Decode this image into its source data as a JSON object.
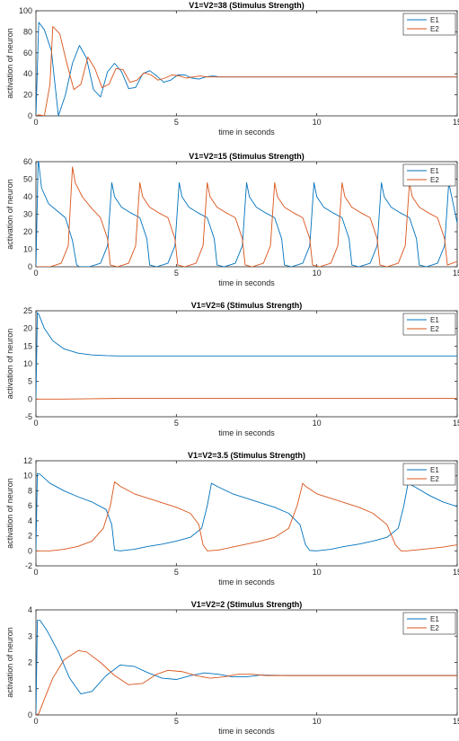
{
  "chart_data": [
    {
      "type": "line",
      "title": "V1=V2=38 (Stimulus Strength)",
      "xlabel": "time in seconds",
      "ylabel": "activation of neuron",
      "xlim": [
        0,
        15
      ],
      "ylim": [
        0,
        100
      ],
      "xticks": [
        "0",
        "5",
        "10",
        "15"
      ],
      "yticks": [
        "0",
        "20",
        "40",
        "60",
        "80",
        "100"
      ],
      "legend_position": "top-right",
      "series": [
        {
          "name": "E1",
          "color": "#0072BD",
          "x": [
            0,
            0.1,
            0.3,
            0.55,
            0.8,
            1.05,
            1.3,
            1.55,
            1.8,
            2.05,
            2.3,
            2.55,
            2.8,
            3.05,
            3.3,
            3.55,
            3.8,
            4.05,
            4.3,
            4.55,
            4.8,
            5.05,
            5.3,
            5.55,
            5.8,
            6.05,
            6.3,
            6.55,
            6.8,
            7,
            8,
            10,
            15
          ],
          "y": [
            0,
            89,
            82,
            62,
            0,
            20,
            50,
            67,
            55,
            25,
            18,
            42,
            50,
            42,
            26,
            27,
            40,
            43,
            38,
            32,
            34,
            39,
            39,
            36,
            35,
            37,
            38,
            37,
            37,
            37,
            37,
            37,
            37
          ]
        },
        {
          "name": "E2",
          "color": "#D95319",
          "x": [
            0,
            0.1,
            0.3,
            0.5,
            0.6,
            0.85,
            1.1,
            1.35,
            1.6,
            1.85,
            2.1,
            2.35,
            2.6,
            2.85,
            3.1,
            3.35,
            3.6,
            3.85,
            4.1,
            4.35,
            4.6,
            4.85,
            5.1,
            5.35,
            5.6,
            5.85,
            6.1,
            6.35,
            6.6,
            7,
            8,
            10,
            15
          ],
          "y": [
            0,
            1,
            0,
            30,
            85,
            78,
            50,
            25,
            30,
            56,
            45,
            27,
            30,
            45,
            44,
            32,
            34,
            41,
            39,
            34,
            36,
            39,
            38,
            36,
            37,
            38,
            37,
            37,
            37,
            37,
            37,
            37,
            37
          ]
        }
      ]
    },
    {
      "type": "line",
      "title": "V1=V2=15 (Stimulus Strength)",
      "xlabel": "time in seconds",
      "ylabel": "activation of neuron",
      "xlim": [
        0,
        15
      ],
      "ylim": [
        0,
        60
      ],
      "xticks": [
        "0",
        "5",
        "10",
        "15"
      ],
      "yticks": [
        "0",
        "10",
        "20",
        "30",
        "40",
        "50",
        "60"
      ],
      "legend_position": "top-right",
      "series": [
        {
          "name": "E1",
          "color": "#0072BD",
          "x": [
            0,
            0.08,
            0.2,
            0.45,
            0.75,
            1.05,
            1.3,
            1.45,
            1.55,
            1.9,
            2.3,
            2.55,
            2.7,
            2.8,
            3.05,
            3.35,
            3.7,
            3.95,
            4.05,
            4.3,
            4.7,
            4.95,
            5.1,
            5.2,
            5.45,
            5.75,
            6.1,
            6.35,
            6.45,
            6.7,
            7.1,
            7.35,
            7.5,
            7.6,
            7.85,
            8.15,
            8.5,
            8.75,
            8.85,
            9.1,
            9.5,
            9.75,
            9.9,
            10.0,
            10.25,
            10.55,
            10.9,
            11.15,
            11.25,
            11.5,
            11.9,
            12.15,
            12.3,
            12.4,
            12.65,
            12.95,
            13.3,
            13.55,
            13.65,
            13.9,
            14.3,
            14.55,
            14.7,
            15
          ],
          "y": [
            0,
            62,
            45,
            36,
            32,
            28,
            15,
            1,
            0,
            0,
            2,
            12,
            48,
            40,
            34,
            31,
            28,
            16,
            1,
            0,
            2,
            12,
            48,
            40,
            34,
            31,
            28,
            16,
            1,
            0,
            2,
            12,
            48,
            40,
            34,
            31,
            28,
            16,
            1,
            0,
            2,
            12,
            48,
            40,
            34,
            31,
            28,
            16,
            1,
            0,
            2,
            12,
            48,
            40,
            34,
            31,
            28,
            16,
            1,
            0,
            2,
            12,
            48,
            25
          ]
        },
        {
          "name": "E2",
          "color": "#D95319",
          "x": [
            0,
            0.5,
            0.9,
            1.15,
            1.3,
            1.4,
            1.65,
            1.95,
            2.3,
            2.55,
            2.65,
            2.9,
            3.3,
            3.55,
            3.7,
            3.8,
            4.05,
            4.35,
            4.7,
            4.95,
            5.05,
            5.3,
            5.7,
            5.95,
            6.1,
            6.2,
            6.45,
            6.75,
            7.1,
            7.35,
            7.45,
            7.7,
            8.1,
            8.35,
            8.5,
            8.6,
            8.85,
            9.15,
            9.5,
            9.75,
            9.85,
            10.1,
            10.5,
            10.75,
            10.9,
            11.0,
            11.25,
            11.55,
            11.9,
            12.15,
            12.25,
            12.5,
            12.9,
            13.15,
            13.3,
            13.4,
            13.65,
            13.95,
            14.3,
            14.55,
            14.65,
            15
          ],
          "y": [
            0,
            0,
            2,
            12,
            57,
            48,
            40,
            34,
            28,
            16,
            1,
            0,
            2,
            12,
            48,
            40,
            34,
            31,
            28,
            16,
            1,
            0,
            2,
            12,
            48,
            40,
            34,
            31,
            28,
            16,
            1,
            0,
            2,
            12,
            48,
            40,
            34,
            31,
            28,
            16,
            1,
            0,
            2,
            12,
            48,
            40,
            34,
            31,
            28,
            16,
            1,
            0,
            2,
            12,
            48,
            40,
            34,
            31,
            28,
            16,
            1,
            3
          ]
        }
      ]
    },
    {
      "type": "line",
      "title": "V1=V2=6 (Stimulus Strength)",
      "xlabel": "time in seconds",
      "ylabel": "activation of neuron",
      "xlim": [
        0,
        15
      ],
      "ylim": [
        -5,
        25
      ],
      "xticks": [
        "0",
        "5",
        "10",
        "15"
      ],
      "yticks": [
        "-5",
        "0",
        "5",
        "10",
        "15",
        "20",
        "25"
      ],
      "legend_position": "top-right",
      "series": [
        {
          "name": "E1",
          "color": "#0072BD",
          "x": [
            0,
            0.05,
            0.1,
            0.3,
            0.6,
            1.0,
            1.5,
            2.0,
            2.5,
            3.0,
            5,
            10,
            15
          ],
          "y": [
            0,
            24.5,
            24,
            20,
            16.5,
            14.2,
            13,
            12.5,
            12.3,
            12.2,
            12.2,
            12.2,
            12.2
          ]
        },
        {
          "name": "E2",
          "color": "#D95319",
          "x": [
            0,
            1,
            2,
            3,
            5,
            10,
            15
          ],
          "y": [
            0,
            0,
            0.1,
            0.2,
            0.2,
            0.2,
            0.2
          ]
        }
      ]
    },
    {
      "type": "line",
      "title": "V1=V2=3.5 (Stimulus Strength)",
      "xlabel": "time in seconds",
      "ylabel": "activation of neuron",
      "xlim": [
        0,
        15
      ],
      "ylim": [
        -2,
        12
      ],
      "xticks": [
        "0",
        "5",
        "10",
        "15"
      ],
      "yticks": [
        "-2",
        "0",
        "2",
        "4",
        "6",
        "8",
        "10",
        "12"
      ],
      "legend_position": "top-right",
      "series": [
        {
          "name": "E1",
          "color": "#0072BD",
          "x": [
            0,
            0.05,
            0.15,
            0.5,
            1.0,
            1.5,
            2.0,
            2.5,
            2.7,
            2.8,
            3.0,
            3.5,
            4.0,
            4.5,
            5.0,
            5.5,
            5.9,
            6.1,
            6.25,
            6.5,
            7.0,
            7.5,
            8.0,
            8.5,
            9.0,
            9.4,
            9.6,
            9.75,
            10.0,
            10.5,
            11.0,
            11.5,
            12.0,
            12.5,
            12.9,
            13.1,
            13.25,
            13.5,
            14.0,
            14.5,
            15
          ],
          "y": [
            0,
            10.3,
            10.2,
            9.0,
            8.0,
            7.2,
            6.5,
            5.5,
            3.5,
            0.1,
            0,
            0.2,
            0.6,
            0.9,
            1.3,
            1.8,
            3.0,
            6.0,
            9.0,
            8.5,
            7.6,
            7.0,
            6.4,
            5.8,
            5.0,
            3.5,
            0.8,
            0.05,
            0,
            0.2,
            0.6,
            0.9,
            1.3,
            1.8,
            3.0,
            6.0,
            9.0,
            8.5,
            7.4,
            6.5,
            5.9
          ]
        },
        {
          "name": "E2",
          "color": "#D95319",
          "x": [
            0,
            0.5,
            1.0,
            1.5,
            2.0,
            2.4,
            2.65,
            2.8,
            3.0,
            3.5,
            4.0,
            4.5,
            5.0,
            5.5,
            5.8,
            5.95,
            6.1,
            6.5,
            7.0,
            7.5,
            8.0,
            8.5,
            9.0,
            9.3,
            9.5,
            9.6,
            10.0,
            10.5,
            11.0,
            11.5,
            12.0,
            12.5,
            12.8,
            13.0,
            13.2,
            13.5,
            14.0,
            14.5,
            15
          ],
          "y": [
            0,
            0,
            0.2,
            0.6,
            1.3,
            3.0,
            6.0,
            9.2,
            8.6,
            7.6,
            7.0,
            6.4,
            5.8,
            5.0,
            3.5,
            0.8,
            0,
            0.1,
            0.5,
            0.9,
            1.3,
            1.8,
            3.0,
            6.0,
            9.0,
            8.6,
            7.6,
            7.0,
            6.4,
            5.8,
            5.0,
            3.5,
            0.8,
            0,
            0,
            0.1,
            0.3,
            0.5,
            0.8
          ]
        }
      ]
    },
    {
      "type": "line",
      "title": "V1=V2=2 (Stimulus Strength)",
      "xlabel": "time in seconds",
      "ylabel": "activation of neuron",
      "xlim": [
        0,
        15
      ],
      "ylim": [
        0,
        4
      ],
      "xticks": [
        "0",
        "5",
        "10",
        "15"
      ],
      "yticks": [
        "0",
        "1",
        "2",
        "3",
        "4"
      ],
      "legend_position": "top-right",
      "series": [
        {
          "name": "E1",
          "color": "#0072BD",
          "x": [
            0,
            0.05,
            0.15,
            0.4,
            0.8,
            1.2,
            1.6,
            2.0,
            2.5,
            3.0,
            3.5,
            4.0,
            4.5,
            5.0,
            5.5,
            6.0,
            6.5,
            7.0,
            7.5,
            8.0,
            9.0,
            10,
            12,
            15
          ],
          "y": [
            0,
            3.6,
            3.6,
            3.2,
            2.4,
            1.4,
            0.8,
            0.9,
            1.5,
            1.9,
            1.85,
            1.6,
            1.4,
            1.35,
            1.5,
            1.6,
            1.55,
            1.45,
            1.45,
            1.52,
            1.5,
            1.5,
            1.5,
            1.5
          ]
        },
        {
          "name": "E2",
          "color": "#D95319",
          "x": [
            0,
            0.1,
            0.3,
            0.6,
            1.0,
            1.5,
            1.8,
            2.3,
            2.8,
            3.3,
            3.8,
            4.3,
            4.7,
            5.2,
            5.7,
            6.2,
            6.7,
            7.2,
            7.7,
            8.2,
            9,
            10,
            12,
            15
          ],
          "y": [
            0,
            0.05,
            0.6,
            1.4,
            2.1,
            2.45,
            2.4,
            2.0,
            1.5,
            1.15,
            1.2,
            1.55,
            1.7,
            1.65,
            1.5,
            1.4,
            1.45,
            1.55,
            1.55,
            1.5,
            1.5,
            1.5,
            1.5,
            1.5
          ]
        }
      ]
    }
  ]
}
